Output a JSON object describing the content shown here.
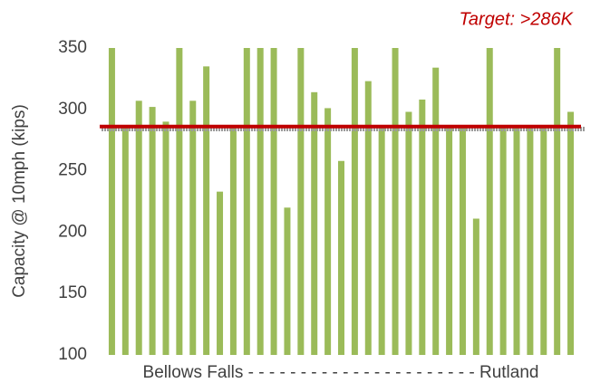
{
  "chart_data": {
    "type": "bar",
    "annotation": "Target: >286K",
    "y_label": "Capacity @ 10mph (kips)",
    "x_label": "Bellows Falls - - - - - - - - - - - - - - - - - - - - - - Rutland",
    "categories": [
      null,
      null,
      null,
      null,
      null,
      null,
      null,
      null,
      null,
      null,
      null,
      null,
      null,
      null,
      null,
      null,
      null,
      null,
      null,
      null,
      null,
      null,
      null,
      null,
      null,
      null,
      null,
      null,
      null,
      null,
      null,
      null,
      null,
      null,
      null
    ],
    "values": [
      350,
      285,
      307,
      302,
      290,
      350,
      307,
      335,
      233,
      285,
      350,
      350,
      350,
      220,
      350,
      314,
      301,
      258,
      350,
      323,
      285,
      350,
      298,
      308,
      334,
      285,
      285,
      211,
      350,
      285,
      285,
      285,
      285,
      350,
      298
    ],
    "color": "#9bbb59",
    "target": 286,
    "target_color": "#c00000",
    "secondary_line": 284,
    "secondary_color": "#9a9a9a",
    "ylim": [
      100,
      350
    ],
    "yticks": [
      100,
      150,
      200,
      250,
      300,
      350
    ],
    "grid": false
  }
}
